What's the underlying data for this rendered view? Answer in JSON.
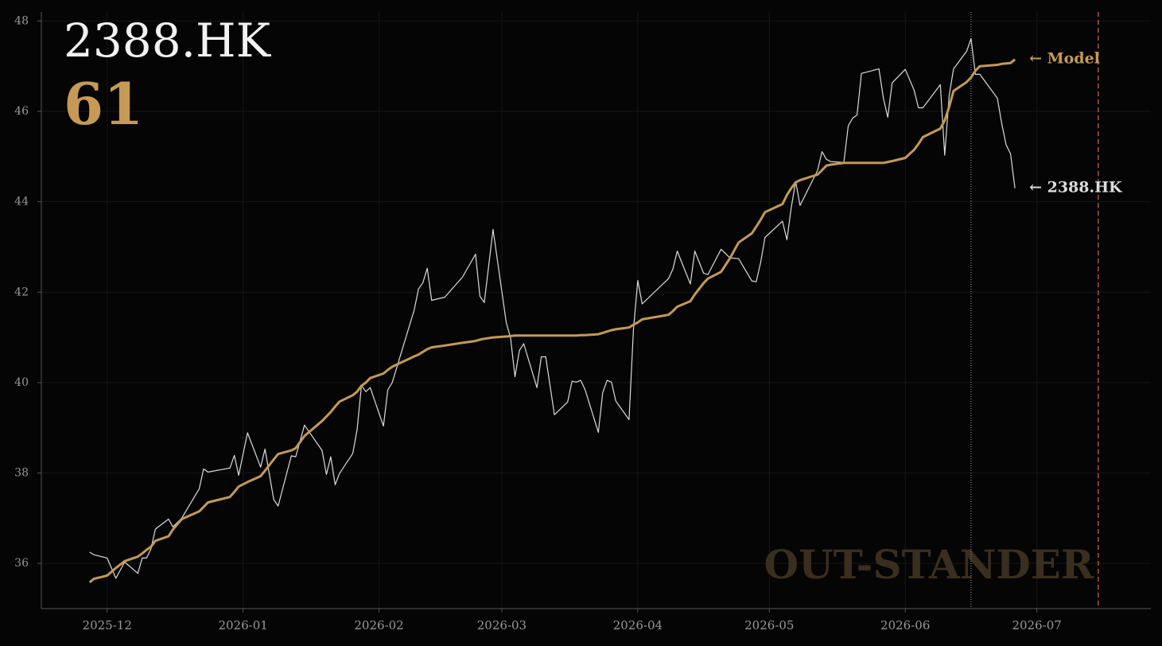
{
  "chart_data": {
    "type": "line",
    "title": "2388.HK",
    "score": 61,
    "watermark": "OUT-STANDER",
    "x": [
      -4,
      -3,
      0,
      2,
      4,
      7,
      8,
      9,
      10,
      11,
      14,
      15,
      17,
      21,
      22,
      23,
      28,
      29,
      30,
      32,
      35,
      36,
      38,
      39,
      42,
      43,
      45,
      49,
      50,
      51,
      52,
      53,
      56,
      57,
      58,
      59,
      60,
      63,
      64,
      65,
      70,
      71,
      72,
      73,
      74,
      77,
      81,
      84,
      85,
      86,
      88,
      91,
      92,
      93,
      94,
      95,
      98,
      99,
      100,
      102,
      105,
      106,
      107,
      108,
      109,
      112,
      113,
      114,
      115,
      116,
      119,
      120,
      121,
      122,
      128,
      129,
      130,
      133,
      134,
      136,
      137,
      140,
      142,
      144,
      147,
      148,
      149,
      150,
      154,
      155,
      156,
      157,
      158,
      162,
      163,
      164,
      165,
      168,
      169,
      170,
      171,
      172,
      176,
      177,
      178,
      179,
      182,
      184,
      185,
      186,
      190,
      191,
      192,
      193,
      196,
      197,
      198,
      199,
      203,
      204,
      205,
      206,
      207
    ],
    "series": [
      {
        "name": "2388.HK",
        "label": "← 2388.HK",
        "color": "#dcdcdc",
        "width": 1.2,
        "values": [
          36.25,
          36.19,
          36.12,
          35.67,
          36.03,
          35.78,
          36.12,
          36.12,
          36.32,
          36.76,
          36.98,
          36.81,
          37.0,
          37.65,
          38.09,
          38.02,
          38.11,
          38.39,
          37.95,
          38.89,
          38.13,
          38.53,
          37.41,
          37.27,
          38.38,
          38.36,
          39.06,
          38.5,
          37.97,
          38.36,
          37.74,
          37.99,
          38.43,
          38.96,
          39.94,
          39.8,
          39.89,
          39.04,
          39.84,
          40.0,
          41.6,
          42.07,
          42.21,
          42.53,
          41.82,
          41.89,
          42.33,
          42.84,
          41.91,
          41.77,
          43.39,
          41.33,
          40.98,
          40.13,
          40.71,
          40.86,
          39.89,
          40.57,
          40.57,
          39.29,
          39.57,
          40.03,
          40.01,
          40.05,
          39.84,
          38.9,
          39.78,
          40.05,
          40.01,
          39.59,
          39.18,
          41.16,
          42.26,
          41.74,
          42.3,
          42.51,
          42.91,
          42.18,
          42.91,
          42.42,
          42.39,
          42.95,
          42.76,
          42.74,
          42.25,
          42.23,
          42.65,
          43.21,
          43.57,
          43.16,
          43.88,
          44.45,
          43.92,
          44.69,
          45.11,
          44.94,
          44.89,
          44.87,
          45.68,
          45.85,
          45.92,
          46.84,
          46.94,
          46.29,
          45.87,
          46.63,
          46.93,
          46.47,
          46.08,
          46.08,
          46.59,
          45.03,
          46.35,
          46.94,
          47.33,
          47.61,
          46.82,
          46.82,
          46.29,
          45.73,
          45.26,
          45.06,
          44.3
        ]
      },
      {
        "name": "Model",
        "label": "← Model",
        "color": "#c49a55",
        "width": 3,
        "values": [
          35.58,
          35.66,
          35.73,
          35.9,
          36.05,
          36.15,
          36.22,
          36.3,
          36.37,
          36.5,
          36.6,
          36.75,
          36.98,
          37.15,
          37.25,
          37.35,
          37.47,
          37.58,
          37.7,
          37.8,
          37.93,
          38.05,
          38.3,
          38.42,
          38.5,
          38.55,
          38.82,
          39.15,
          39.25,
          39.35,
          39.47,
          39.58,
          39.72,
          39.8,
          39.93,
          40.0,
          40.1,
          40.2,
          40.28,
          40.35,
          40.58,
          40.62,
          40.68,
          40.74,
          40.78,
          40.82,
          40.88,
          40.92,
          40.95,
          40.97,
          41.0,
          41.02,
          41.03,
          41.04,
          41.04,
          41.04,
          41.04,
          41.04,
          41.04,
          41.04,
          41.04,
          41.04,
          41.04,
          41.05,
          41.05,
          41.07,
          41.1,
          41.13,
          41.16,
          41.18,
          41.22,
          41.28,
          41.33,
          41.4,
          41.5,
          41.58,
          41.68,
          41.8,
          41.95,
          42.2,
          42.3,
          42.45,
          42.75,
          43.1,
          43.3,
          43.45,
          43.6,
          43.77,
          43.95,
          44.15,
          44.3,
          44.43,
          44.48,
          44.6,
          44.7,
          44.8,
          44.82,
          44.86,
          44.86,
          44.86,
          44.86,
          44.86,
          44.86,
          44.86,
          44.88,
          44.9,
          44.97,
          45.15,
          45.28,
          45.43,
          45.62,
          45.8,
          46.1,
          46.45,
          46.65,
          46.75,
          46.9,
          47.0,
          47.03,
          47.05,
          47.06,
          47.07,
          47.15
        ]
      }
    ],
    "xlim": [
      -15,
      238
    ],
    "xticks": [
      {
        "value": 0,
        "label": "2025-12"
      },
      {
        "value": 31,
        "label": "2026-01"
      },
      {
        "value": 62,
        "label": "2026-02"
      },
      {
        "value": 90,
        "label": "2026-03"
      },
      {
        "value": 121,
        "label": "2026-04"
      },
      {
        "value": 151,
        "label": "2026-05"
      },
      {
        "value": 182,
        "label": "2026-06"
      },
      {
        "value": 212,
        "label": "2026-07"
      }
    ],
    "ylim": [
      35,
      48.2
    ],
    "yticks": [
      36,
      38,
      40,
      42,
      44,
      46,
      48
    ],
    "grid": true,
    "markers": [
      {
        "x": 197,
        "color": "#666666",
        "dash": "1,2"
      },
      {
        "x": 226,
        "color": "#b5483f",
        "dash": "6,4"
      }
    ]
  }
}
